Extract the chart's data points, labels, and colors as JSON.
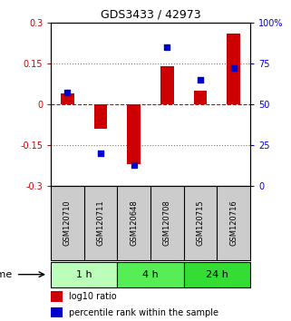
{
  "title": "GDS3433 / 42973",
  "samples": [
    "GSM120710",
    "GSM120711",
    "GSM120648",
    "GSM120708",
    "GSM120715",
    "GSM120716"
  ],
  "log10_ratio": [
    0.04,
    -0.09,
    -0.22,
    0.14,
    0.05,
    0.26
  ],
  "percentile_rank": [
    57,
    20,
    13,
    85,
    65,
    72
  ],
  "groups": [
    {
      "label": "1 h",
      "start": 0,
      "end": 2,
      "color": "#bbffbb"
    },
    {
      "label": "4 h",
      "start": 2,
      "end": 4,
      "color": "#55ee55"
    },
    {
      "label": "24 h",
      "start": 4,
      "end": 6,
      "color": "#33dd33"
    }
  ],
  "bar_color": "#cc0000",
  "dot_color": "#0000cc",
  "ylim_left": [
    -0.3,
    0.3
  ],
  "ylim_right": [
    0,
    100
  ],
  "yticks_left": [
    -0.3,
    -0.15,
    0.0,
    0.15,
    0.3
  ],
  "ytick_labels_left": [
    "-0.3",
    "-0.15",
    "0",
    "0.15",
    "0.3"
  ],
  "yticks_right": [
    0,
    25,
    50,
    75,
    100
  ],
  "ytick_labels_right": [
    "0",
    "25",
    "50",
    "75",
    "100%"
  ],
  "hlines": [
    -0.15,
    0.15
  ],
  "zeroline_color": "#cc0000",
  "hline_color": "#777777",
  "background_color": "#ffffff",
  "plot_bg_color": "#ffffff",
  "label_log10": "log10 ratio",
  "label_pct": "percentile rank within the sample",
  "sample_bg_color": "#cccccc"
}
